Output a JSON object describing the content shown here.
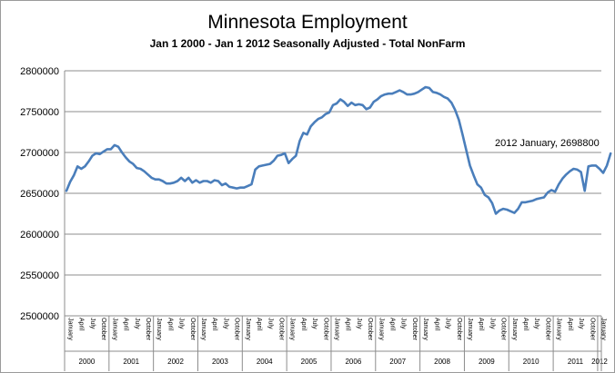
{
  "chart_data": {
    "type": "line",
    "title": "Minnesota Employment",
    "subtitle": "Jan 1 2000 - Jan 1 2012  Seasonally Adjusted - Total NonFarm",
    "xlabel": "",
    "ylabel": "",
    "ylim": [
      2500000,
      2800000
    ],
    "y_ticks": [
      "2800000",
      "2750000",
      "2700000",
      "2650000",
      "2600000",
      "2550000",
      "2500000"
    ],
    "grid": true,
    "legend": "none",
    "line_color": "#4a7ebb",
    "month_labels": [
      "January",
      "April",
      "July",
      "October"
    ],
    "years": [
      "2000",
      "2001",
      "2002",
      "2003",
      "2004",
      "2005",
      "2006",
      "2007",
      "2008",
      "2009",
      "2010",
      "2011",
      "2012"
    ],
    "annotation": "2012 January, 2698800",
    "series": [
      {
        "values": [
          2653000,
          2664000,
          2672000,
          2683000,
          2680000,
          2683000,
          2689000,
          2696000,
          2699000,
          2698000,
          2701000,
          2704000,
          2704000,
          2709000,
          2707000,
          2700000,
          2694000,
          2689000,
          2686000,
          2681000,
          2680000,
          2677000,
          2673000,
          2669000,
          2667000,
          2667000,
          2665000,
          2662000,
          2662000,
          2663000,
          2665000,
          2669000,
          2665000,
          2669000,
          2663000,
          2666000,
          2663000,
          2665000,
          2665000,
          2663000,
          2666000,
          2665000,
          2660000,
          2662000,
          2658000,
          2657000,
          2656000,
          2657000,
          2657000,
          2659000,
          2661000,
          2679000,
          2683000,
          2684000,
          2685000,
          2686000,
          2690000,
          2696000,
          2697000,
          2699000,
          2687000,
          2692000,
          2696000,
          2714000,
          2724000,
          2722000,
          2732000,
          2737000,
          2741000,
          2743000,
          2747000,
          2749000,
          2758000,
          2760000,
          2765000,
          2762000,
          2757000,
          2761000,
          2758000,
          2759000,
          2758000,
          2753000,
          2755000,
          2762000,
          2765000,
          2769000,
          2771000,
          2772000,
          2772000,
          2774000,
          2776000,
          2774000,
          2771000,
          2771000,
          2772000,
          2774000,
          2777000,
          2780000,
          2779000,
          2774000,
          2773000,
          2771000,
          2768000,
          2766000,
          2761000,
          2752000,
          2740000,
          2722000,
          2703000,
          2684000,
          2672000,
          2661000,
          2657000,
          2648000,
          2645000,
          2638000,
          2625000,
          2629000,
          2631000,
          2630000,
          2628000,
          2626000,
          2631000,
          2639000,
          2639000,
          2640000,
          2641000,
          2643000,
          2644000,
          2645000,
          2651000,
          2654000,
          2652000,
          2661000,
          2668000,
          2673000,
          2677000,
          2680000,
          2679000,
          2676000,
          2653000,
          2683000,
          2684000,
          2684000,
          2680000,
          2675000,
          2684000,
          2698800
        ]
      }
    ]
  }
}
